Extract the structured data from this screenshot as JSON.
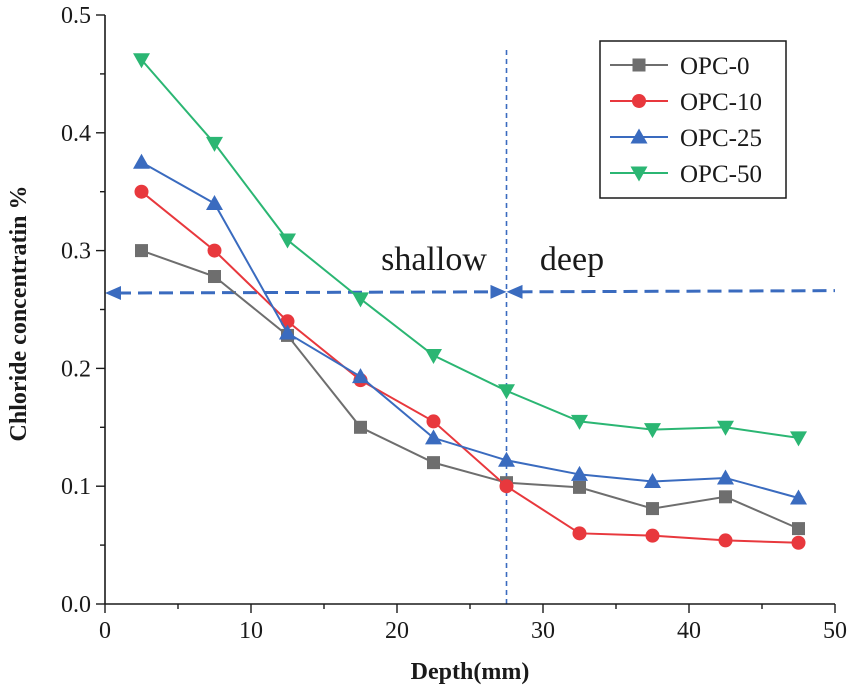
{
  "chart_data": {
    "type": "line",
    "title": "",
    "xlabel": "Depth(mm)",
    "ylabel": "Chloride concentratin %",
    "xlim": [
      0,
      50
    ],
    "ylim": [
      0,
      0.5
    ],
    "xticks": [
      0,
      10,
      20,
      30,
      40,
      50
    ],
    "yticks": [
      "0.0",
      "0.1",
      "0.2",
      "0.3",
      "0.4",
      "0.5"
    ],
    "x": [
      2.5,
      7.5,
      12.5,
      17.5,
      22.5,
      27.5,
      32.5,
      37.5,
      42.5,
      47.5
    ],
    "legend_position": "top-right",
    "series": [
      {
        "name": "OPC-0",
        "color": "#6e6e6e",
        "marker": "square",
        "values": [
          0.3,
          0.278,
          0.228,
          0.15,
          0.12,
          0.103,
          0.099,
          0.081,
          0.091,
          0.064
        ]
      },
      {
        "name": "OPC-10",
        "color": "#e8383d",
        "marker": "circle",
        "values": [
          0.35,
          0.3,
          0.24,
          0.19,
          0.155,
          0.1,
          0.06,
          0.058,
          0.054,
          0.052
        ]
      },
      {
        "name": "OPC-25",
        "color": "#3a6bbf",
        "marker": "triangle-up",
        "values": [
          0.375,
          0.34,
          0.23,
          0.193,
          0.141,
          0.122,
          0.11,
          0.104,
          0.107,
          0.09
        ]
      },
      {
        "name": "OPC-50",
        "color": "#2bb673",
        "marker": "triangle-down",
        "values": [
          0.462,
          0.391,
          0.309,
          0.259,
          0.211,
          0.181,
          0.155,
          0.148,
          0.15,
          0.141
        ]
      }
    ],
    "annotations": {
      "shallow_label": "shallow",
      "deep_label": "deep",
      "boundary_x": 27.5,
      "arrow_y_left": 0.264,
      "arrow_y_right": 0.266,
      "line_color": "#3a6bbf"
    }
  }
}
